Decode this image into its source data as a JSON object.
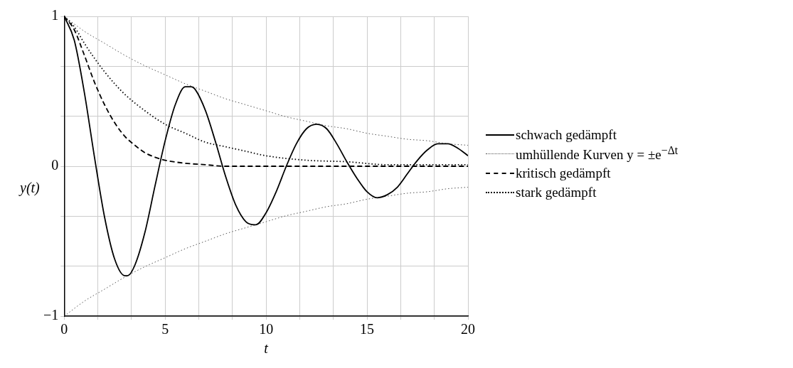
{
  "chart_data": {
    "type": "line",
    "xlabel": "t",
    "ylabel": "y(t)",
    "xlim": [
      0,
      20
    ],
    "ylim": [
      -1,
      1
    ],
    "xticks": [
      0,
      {
        "value": 1.667,
        "label": null
      },
      {
        "value": 3.333,
        "label": null
      },
      5,
      {
        "value": 6.667,
        "label": null
      },
      {
        "value": 8.333,
        "label": null
      },
      10,
      {
        "value": 11.667,
        "label": null
      },
      {
        "value": 13.333,
        "label": null
      },
      15,
      {
        "value": 16.667,
        "label": null
      },
      {
        "value": 18.333,
        "label": null
      },
      20
    ],
    "yticks": [
      -1,
      {
        "value": -0.667,
        "label": null
      },
      {
        "value": -0.333,
        "label": null
      },
      0,
      {
        "value": 0.333,
        "label": null
      },
      {
        "value": 0.667,
        "label": null
      },
      1
    ],
    "grid": true,
    "legend": "right",
    "marker": "none",
    "series": [
      {
        "name": "schwach gedämpft",
        "color": "#000000",
        "line_style": "solid",
        "x": [
          0,
          0.5,
          1,
          1.5,
          2,
          2.5,
          3,
          3.14,
          3.5,
          4,
          4.5,
          5,
          5.5,
          6,
          6.28,
          6.5,
          7,
          7.5,
          8,
          8.5,
          9,
          9.42,
          9.5,
          10,
          10.5,
          11,
          11.5,
          12,
          12.5,
          13,
          13.5,
          14,
          14.5,
          15,
          15.5,
          16,
          16.5,
          17,
          17.5,
          18,
          18.5,
          19,
          19.5,
          20
        ],
        "values": [
          1,
          0.84,
          0.49,
          0.06,
          -0.34,
          -0.62,
          -0.73,
          -0.73,
          -0.66,
          -0.44,
          -0.13,
          0.17,
          0.41,
          0.53,
          0.53,
          0.51,
          0.37,
          0.16,
          -0.07,
          -0.26,
          -0.37,
          -0.39,
          -0.39,
          -0.31,
          -0.17,
          0,
          0.15,
          0.25,
          0.28,
          0.25,
          0.15,
          0.03,
          -0.08,
          -0.17,
          -0.21,
          -0.19,
          -0.14,
          -0.05,
          0.04,
          0.11,
          0.15,
          0.15,
          0.12,
          0.07
        ]
      },
      {
        "name": "umhüllende Kurven y = ±e$^{−Δt}$",
        "color": "#555555",
        "line_style": "dotted",
        "x": [
          0,
          1,
          2,
          3,
          4,
          5,
          6,
          7,
          8,
          9,
          10,
          11,
          12,
          13,
          14,
          15,
          16,
          17,
          18,
          19,
          20
        ],
        "values": [
          1,
          0.9,
          0.82,
          0.74,
          0.67,
          0.61,
          0.55,
          0.5,
          0.45,
          0.41,
          0.37,
          0.33,
          0.3,
          0.27,
          0.25,
          0.22,
          0.2,
          0.18,
          0.17,
          0.15,
          0.14
        ]
      },
      {
        "color": "#555555",
        "line_style": "dotted",
        "x": [
          0,
          1,
          2,
          3,
          4,
          5,
          6,
          7,
          8,
          9,
          10,
          11,
          12,
          13,
          14,
          15,
          16,
          17,
          18,
          19,
          20
        ],
        "values": [
          -1,
          -0.9,
          -0.82,
          -0.74,
          -0.67,
          -0.61,
          -0.55,
          -0.5,
          -0.45,
          -0.41,
          -0.37,
          -0.33,
          -0.3,
          -0.27,
          -0.25,
          -0.22,
          -0.2,
          -0.18,
          -0.17,
          -0.15,
          -0.14
        ]
      },
      {
        "name": "kritisch gedämpft",
        "color": "#000000",
        "line_style": "dashed",
        "x": [
          0,
          0.5,
          1,
          1.5,
          2,
          2.5,
          3,
          3.5,
          4,
          4.5,
          5,
          6,
          7,
          8,
          10,
          20
        ],
        "values": [
          1,
          0.91,
          0.74,
          0.56,
          0.41,
          0.29,
          0.2,
          0.14,
          0.09,
          0.06,
          0.04,
          0.02,
          0.01,
          0,
          0,
          0
        ]
      },
      {
        "name": "stark gedämpft",
        "color": "#000000",
        "line_style": "dotted",
        "x": [
          0,
          0.5,
          1,
          1.5,
          2,
          2.5,
          3,
          4,
          5,
          6,
          7,
          8,
          9,
          10,
          12,
          14,
          16,
          18,
          20
        ],
        "values": [
          1,
          0.93,
          0.82,
          0.72,
          0.63,
          0.55,
          0.48,
          0.37,
          0.28,
          0.22,
          0.16,
          0.13,
          0.1,
          0.07,
          0.04,
          0.03,
          0.01,
          0.01,
          0.01
        ]
      }
    ]
  }
}
